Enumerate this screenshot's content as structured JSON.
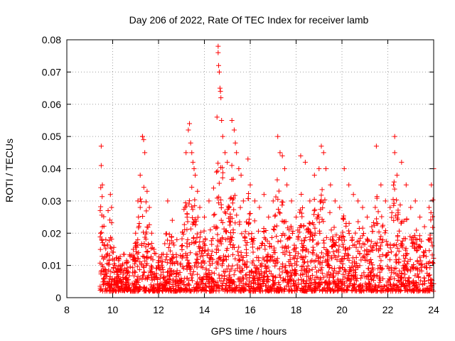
{
  "chart_data": {
    "type": "scatter",
    "title": "Day 206 of 2022, Rate Of TEC Index for receiver lamb",
    "xlabel": "GPS time / hours",
    "ylabel": "ROTI / TECUs",
    "xlim": [
      8,
      24
    ],
    "ylim": [
      0,
      0.08
    ],
    "grid": true,
    "marker": "+",
    "x_ticks": [
      "8",
      "10",
      "12",
      "14",
      "16",
      "18",
      "20",
      "22",
      "24"
    ],
    "y_ticks": [
      "0",
      "0.01",
      "0.02",
      "0.03",
      "0.04",
      "0.05",
      "0.06",
      "0.07",
      "0.08"
    ],
    "series": [
      {
        "name": "ROTI",
        "color": "#ff0000",
        "x": [
          9.5,
          9.5,
          9.55,
          9.55,
          9.6,
          9.6,
          9.7,
          9.8,
          9.9,
          9.95,
          10.0,
          10.05,
          10.3,
          10.6,
          10.9,
          11.0,
          11.1,
          11.2,
          11.3,
          11.3,
          11.35,
          11.4,
          11.5,
          11.6,
          11.7,
          11.8,
          12.0,
          12.2,
          12.4,
          12.6,
          12.8,
          13.0,
          13.2,
          13.3,
          13.35,
          13.4,
          13.45,
          13.5,
          13.55,
          13.6,
          13.7,
          13.8,
          14.0,
          14.2,
          14.4,
          14.55,
          14.6,
          14.6,
          14.62,
          14.65,
          14.68,
          14.7,
          14.72,
          14.75,
          14.8,
          14.9,
          15.0,
          15.2,
          15.3,
          15.35,
          15.4,
          15.5,
          15.6,
          15.7,
          15.9,
          16.0,
          16.2,
          16.4,
          16.6,
          16.8,
          17.0,
          17.2,
          17.3,
          17.4,
          17.5,
          17.6,
          17.8,
          18.0,
          18.2,
          18.4,
          18.6,
          18.8,
          19.0,
          19.1,
          19.2,
          19.3,
          19.5,
          19.7,
          19.9,
          20.1,
          20.3,
          20.5,
          20.7,
          20.9,
          21.1,
          21.3,
          21.5,
          21.7,
          21.9,
          22.1,
          22.3,
          22.3,
          22.4,
          22.6,
          22.8,
          23.0,
          23.2,
          23.4,
          23.6,
          23.8,
          23.9,
          24.0
        ],
        "y": [
          0.047,
          0.041,
          0.035,
          0.022,
          0.012,
          0.004,
          0.018,
          0.027,
          0.032,
          0.028,
          0.012,
          0.005,
          0.003,
          0.011,
          0.015,
          0.02,
          0.03,
          0.038,
          0.05,
          0.05,
          0.049,
          0.045,
          0.033,
          0.028,
          0.02,
          0.015,
          0.01,
          0.006,
          0.03,
          0.024,
          0.018,
          0.016,
          0.045,
          0.052,
          0.054,
          0.048,
          0.045,
          0.042,
          0.04,
          0.038,
          0.033,
          0.028,
          0.025,
          0.03,
          0.034,
          0.056,
          0.078,
          0.076,
          0.072,
          0.07,
          0.065,
          0.064,
          0.062,
          0.055,
          0.05,
          0.045,
          0.042,
          0.055,
          0.052,
          0.048,
          0.045,
          0.04,
          0.038,
          0.03,
          0.043,
          0.035,
          0.03,
          0.028,
          0.032,
          0.025,
          0.03,
          0.05,
          0.045,
          0.044,
          0.04,
          0.035,
          0.03,
          0.025,
          0.044,
          0.042,
          0.03,
          0.038,
          0.04,
          0.047,
          0.045,
          0.04,
          0.035,
          0.03,
          0.028,
          0.04,
          0.035,
          0.032,
          0.03,
          0.028,
          0.025,
          0.022,
          0.047,
          0.035,
          0.03,
          0.028,
          0.045,
          0.05,
          0.038,
          0.042,
          0.035,
          0.028,
          0.03,
          0.025,
          0.022,
          0.028,
          0.035,
          0.04
        ]
      }
    ]
  }
}
